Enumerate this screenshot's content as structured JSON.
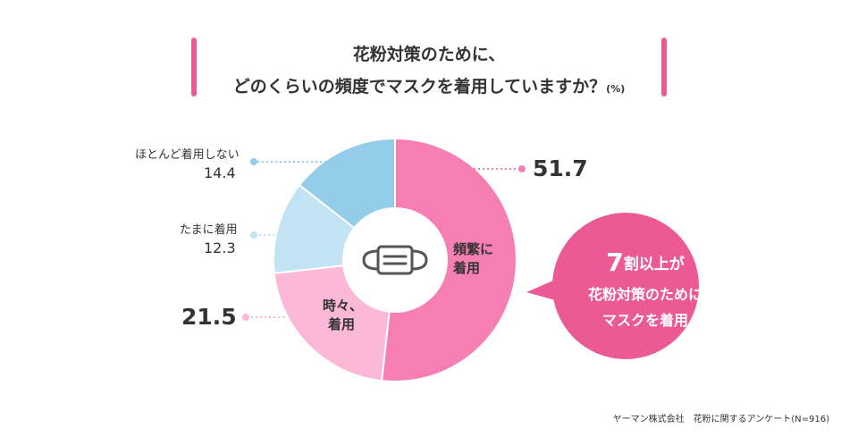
{
  "title": {
    "line1": "花粉対策のために、",
    "line2": "どのくらいの頻度でマスクを着用していますか？",
    "unit": "(%)"
  },
  "chart_data": {
    "type": "pie",
    "donut": true,
    "categories": [
      "頻繁に着用",
      "時々、着用",
      "たまに着用",
      "ほとんど着用しない"
    ],
    "values": [
      51.7,
      21.5,
      12.3,
      14.4
    ],
    "colors": [
      "#f57fb2",
      "#fbb9d7",
      "#c2e3f3",
      "#93cde9"
    ],
    "outer_labels": {
      "frequent_value": "51.7",
      "sometimes_value": "21.5",
      "rarely_label": "たまに着用",
      "rarely_value": "12.3",
      "hardly_label": "ほとんど着用しない",
      "hardly_value": "14.4"
    },
    "inner_labels": {
      "frequent_l1": "頻繁に",
      "frequent_l2": "着用",
      "sometimes_l1": "時々、",
      "sometimes_l2": "着用"
    },
    "center_icon": "mask-icon"
  },
  "callout": {
    "line1_num": "7",
    "line1_rest": "割以上が",
    "line2": "花粉対策のために",
    "line3": "マスクを着用"
  },
  "source": "ヤーマン株式会社　花粉に関するアンケート(N=916)"
}
